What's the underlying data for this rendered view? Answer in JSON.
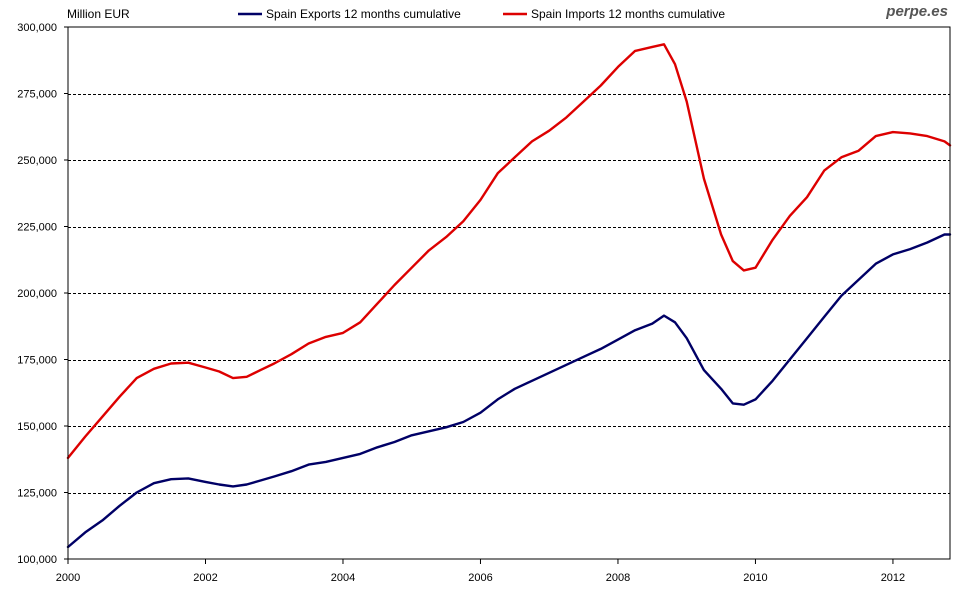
{
  "chart_data": {
    "type": "line",
    "title": "",
    "ylabel": "Million EUR",
    "xlabel": "",
    "watermark": "perpe.es",
    "xlim": [
      2000,
      2012.83
    ],
    "ylim": [
      100000,
      300000
    ],
    "x_ticks": [
      2000,
      2002,
      2004,
      2006,
      2008,
      2010,
      2012
    ],
    "x_tick_labels": [
      "2000",
      "2002",
      "2004",
      "2006",
      "2008",
      "2010",
      "2012"
    ],
    "y_ticks": [
      100000,
      125000,
      150000,
      175000,
      200000,
      225000,
      250000,
      275000,
      300000
    ],
    "y_tick_labels": [
      "100,000",
      "125,000",
      "150,000",
      "175,000",
      "200,000",
      "225,000",
      "250,000",
      "275,000",
      "300,000"
    ],
    "grid": "horizontal dashed",
    "legend_position": "top",
    "series": [
      {
        "name": "Spain Exports 12 months cumulative",
        "color": "#000066",
        "points": [
          [
            2000.0,
            104500
          ],
          [
            2000.25,
            110000
          ],
          [
            2000.5,
            114500
          ],
          [
            2000.75,
            120000
          ],
          [
            2001.0,
            125000
          ],
          [
            2001.25,
            128500
          ],
          [
            2001.5,
            130000
          ],
          [
            2001.75,
            130300
          ],
          [
            2002.0,
            129000
          ],
          [
            2002.2,
            128000
          ],
          [
            2002.4,
            127300
          ],
          [
            2002.6,
            128000
          ],
          [
            2002.8,
            129500
          ],
          [
            2003.0,
            131000
          ],
          [
            2003.25,
            133000
          ],
          [
            2003.5,
            135500
          ],
          [
            2003.75,
            136500
          ],
          [
            2004.0,
            138000
          ],
          [
            2004.25,
            139500
          ],
          [
            2004.5,
            142000
          ],
          [
            2004.75,
            144000
          ],
          [
            2005.0,
            146500
          ],
          [
            2005.25,
            148000
          ],
          [
            2005.5,
            149500
          ],
          [
            2005.75,
            151500
          ],
          [
            2006.0,
            155000
          ],
          [
            2006.25,
            160000
          ],
          [
            2006.5,
            164000
          ],
          [
            2006.75,
            167000
          ],
          [
            2007.0,
            170000
          ],
          [
            2007.25,
            173000
          ],
          [
            2007.5,
            176000
          ],
          [
            2007.75,
            179000
          ],
          [
            2008.0,
            182500
          ],
          [
            2008.25,
            186000
          ],
          [
            2008.5,
            188500
          ],
          [
            2008.67,
            191500
          ],
          [
            2008.83,
            189000
          ],
          [
            2009.0,
            183000
          ],
          [
            2009.25,
            171000
          ],
          [
            2009.5,
            164000
          ],
          [
            2009.67,
            158500
          ],
          [
            2009.83,
            158000
          ],
          [
            2010.0,
            160000
          ],
          [
            2010.25,
            167000
          ],
          [
            2010.5,
            175000
          ],
          [
            2010.75,
            183000
          ],
          [
            2011.0,
            191000
          ],
          [
            2011.25,
            199000
          ],
          [
            2011.5,
            205000
          ],
          [
            2011.75,
            211000
          ],
          [
            2012.0,
            214500
          ],
          [
            2012.25,
            216500
          ],
          [
            2012.5,
            219000
          ],
          [
            2012.75,
            222000
          ],
          [
            2012.83,
            222000
          ]
        ]
      },
      {
        "name": "Spain Imports 12 months cumulative",
        "color": "#dd0000",
        "points": [
          [
            2000.0,
            138000
          ],
          [
            2000.25,
            146000
          ],
          [
            2000.5,
            153500
          ],
          [
            2000.75,
            161000
          ],
          [
            2001.0,
            168000
          ],
          [
            2001.25,
            171500
          ],
          [
            2001.5,
            173500
          ],
          [
            2001.75,
            173800
          ],
          [
            2002.0,
            172000
          ],
          [
            2002.2,
            170500
          ],
          [
            2002.4,
            168000
          ],
          [
            2002.6,
            168500
          ],
          [
            2002.8,
            171000
          ],
          [
            2003.0,
            173500
          ],
          [
            2003.25,
            177000
          ],
          [
            2003.5,
            181000
          ],
          [
            2003.75,
            183500
          ],
          [
            2004.0,
            185000
          ],
          [
            2004.25,
            189000
          ],
          [
            2004.5,
            196000
          ],
          [
            2004.75,
            203000
          ],
          [
            2005.0,
            209500
          ],
          [
            2005.25,
            216000
          ],
          [
            2005.5,
            221000
          ],
          [
            2005.75,
            227000
          ],
          [
            2006.0,
            235000
          ],
          [
            2006.25,
            245000
          ],
          [
            2006.5,
            251000
          ],
          [
            2006.75,
            257000
          ],
          [
            2007.0,
            261000
          ],
          [
            2007.25,
            266000
          ],
          [
            2007.5,
            272000
          ],
          [
            2007.75,
            278000
          ],
          [
            2008.0,
            285000
          ],
          [
            2008.25,
            291000
          ],
          [
            2008.5,
            292500
          ],
          [
            2008.67,
            293500
          ],
          [
            2008.83,
            286000
          ],
          [
            2009.0,
            272000
          ],
          [
            2009.25,
            243000
          ],
          [
            2009.5,
            222000
          ],
          [
            2009.67,
            212000
          ],
          [
            2009.83,
            208500
          ],
          [
            2010.0,
            209500
          ],
          [
            2010.25,
            220000
          ],
          [
            2010.5,
            229000
          ],
          [
            2010.75,
            236000
          ],
          [
            2011.0,
            246000
          ],
          [
            2011.25,
            251000
          ],
          [
            2011.5,
            253500
          ],
          [
            2011.75,
            259000
          ],
          [
            2012.0,
            260500
          ],
          [
            2012.25,
            260000
          ],
          [
            2012.5,
            259000
          ],
          [
            2012.75,
            257000
          ],
          [
            2012.83,
            255500
          ]
        ]
      }
    ]
  }
}
